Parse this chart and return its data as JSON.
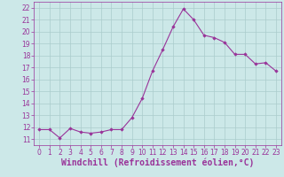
{
  "x": [
    0,
    1,
    2,
    3,
    4,
    5,
    6,
    7,
    8,
    9,
    10,
    11,
    12,
    13,
    14,
    15,
    16,
    17,
    18,
    19,
    20,
    21,
    22,
    23
  ],
  "y": [
    11.8,
    11.8,
    11.1,
    11.9,
    11.6,
    11.5,
    11.6,
    11.8,
    11.8,
    12.8,
    14.4,
    16.7,
    18.5,
    20.4,
    21.9,
    21.0,
    19.7,
    19.5,
    19.1,
    18.1,
    18.1,
    17.3,
    17.4,
    16.7
  ],
  "line_color": "#993399",
  "marker_color": "#993399",
  "bg_color": "#cce8e8",
  "grid_color": "#aacccc",
  "xlabel": "Windchill (Refroidissement éolien,°C)",
  "xlim": [
    -0.5,
    23.5
  ],
  "ylim": [
    10.5,
    22.5
  ],
  "yticks": [
    11,
    12,
    13,
    14,
    15,
    16,
    17,
    18,
    19,
    20,
    21,
    22
  ],
  "xticks": [
    0,
    1,
    2,
    3,
    4,
    5,
    6,
    7,
    8,
    9,
    10,
    11,
    12,
    13,
    14,
    15,
    16,
    17,
    18,
    19,
    20,
    21,
    22,
    23
  ],
  "font_color": "#993399",
  "tick_fontsize": 5.5,
  "label_fontsize": 7.0
}
